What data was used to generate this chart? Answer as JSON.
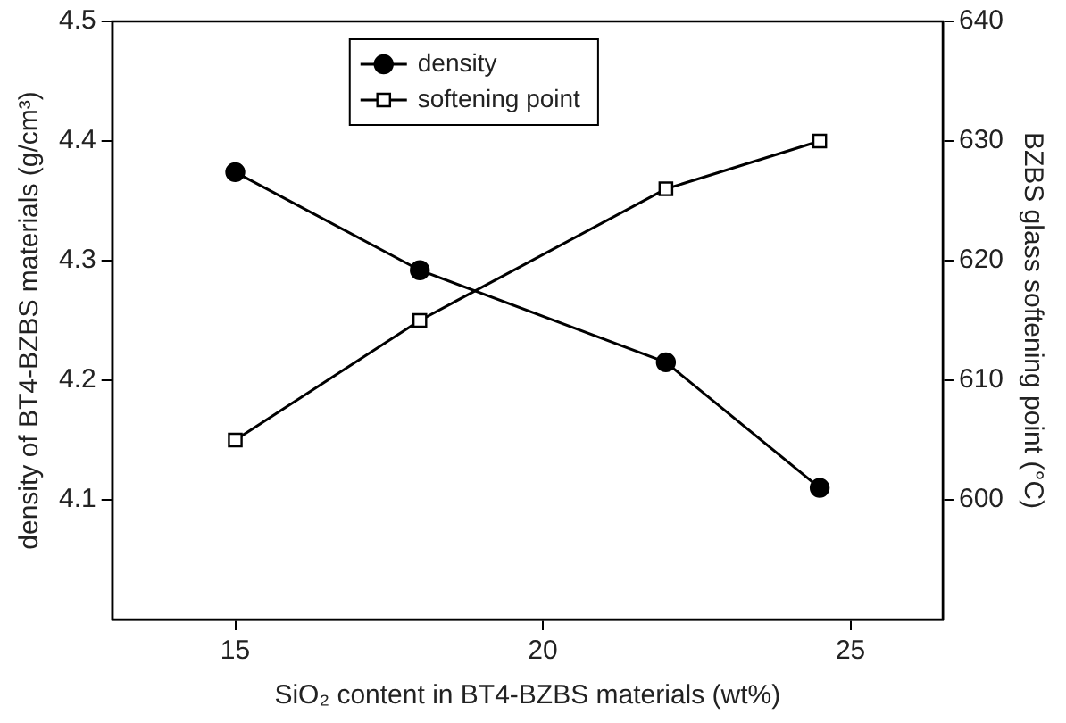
{
  "chart_data": {
    "type": "line",
    "xlabel": "SiO₂ content in BT4-BZBS materials (wt%)",
    "ylabel": "density of BT4-BZBS materials (g/cm³)",
    "y2label": "BZBS glass softening point (°C)",
    "x": [
      15,
      18,
      22,
      24.5
    ],
    "series": [
      {
        "name": "density",
        "color": "#000000",
        "marker": "circle",
        "values": [
          4.374,
          4.292,
          4.215,
          4.11
        ]
      },
      {
        "name": "softening point",
        "color": "#000000",
        "marker": "square",
        "axis": "y2",
        "values": [
          605,
          615,
          626,
          630
        ]
      }
    ],
    "xlim": [
      13,
      26.5
    ],
    "xticks": [
      15,
      20,
      25
    ],
    "ylim": [
      4.0,
      4.5
    ],
    "yticks": [
      4.1,
      4.2,
      4.3,
      4.4,
      4.5
    ],
    "y2lim": [
      590,
      640
    ],
    "y2ticks": [
      600,
      610,
      620,
      630,
      640
    ],
    "grid": false,
    "legend": "top",
    "line_style": "solid"
  }
}
